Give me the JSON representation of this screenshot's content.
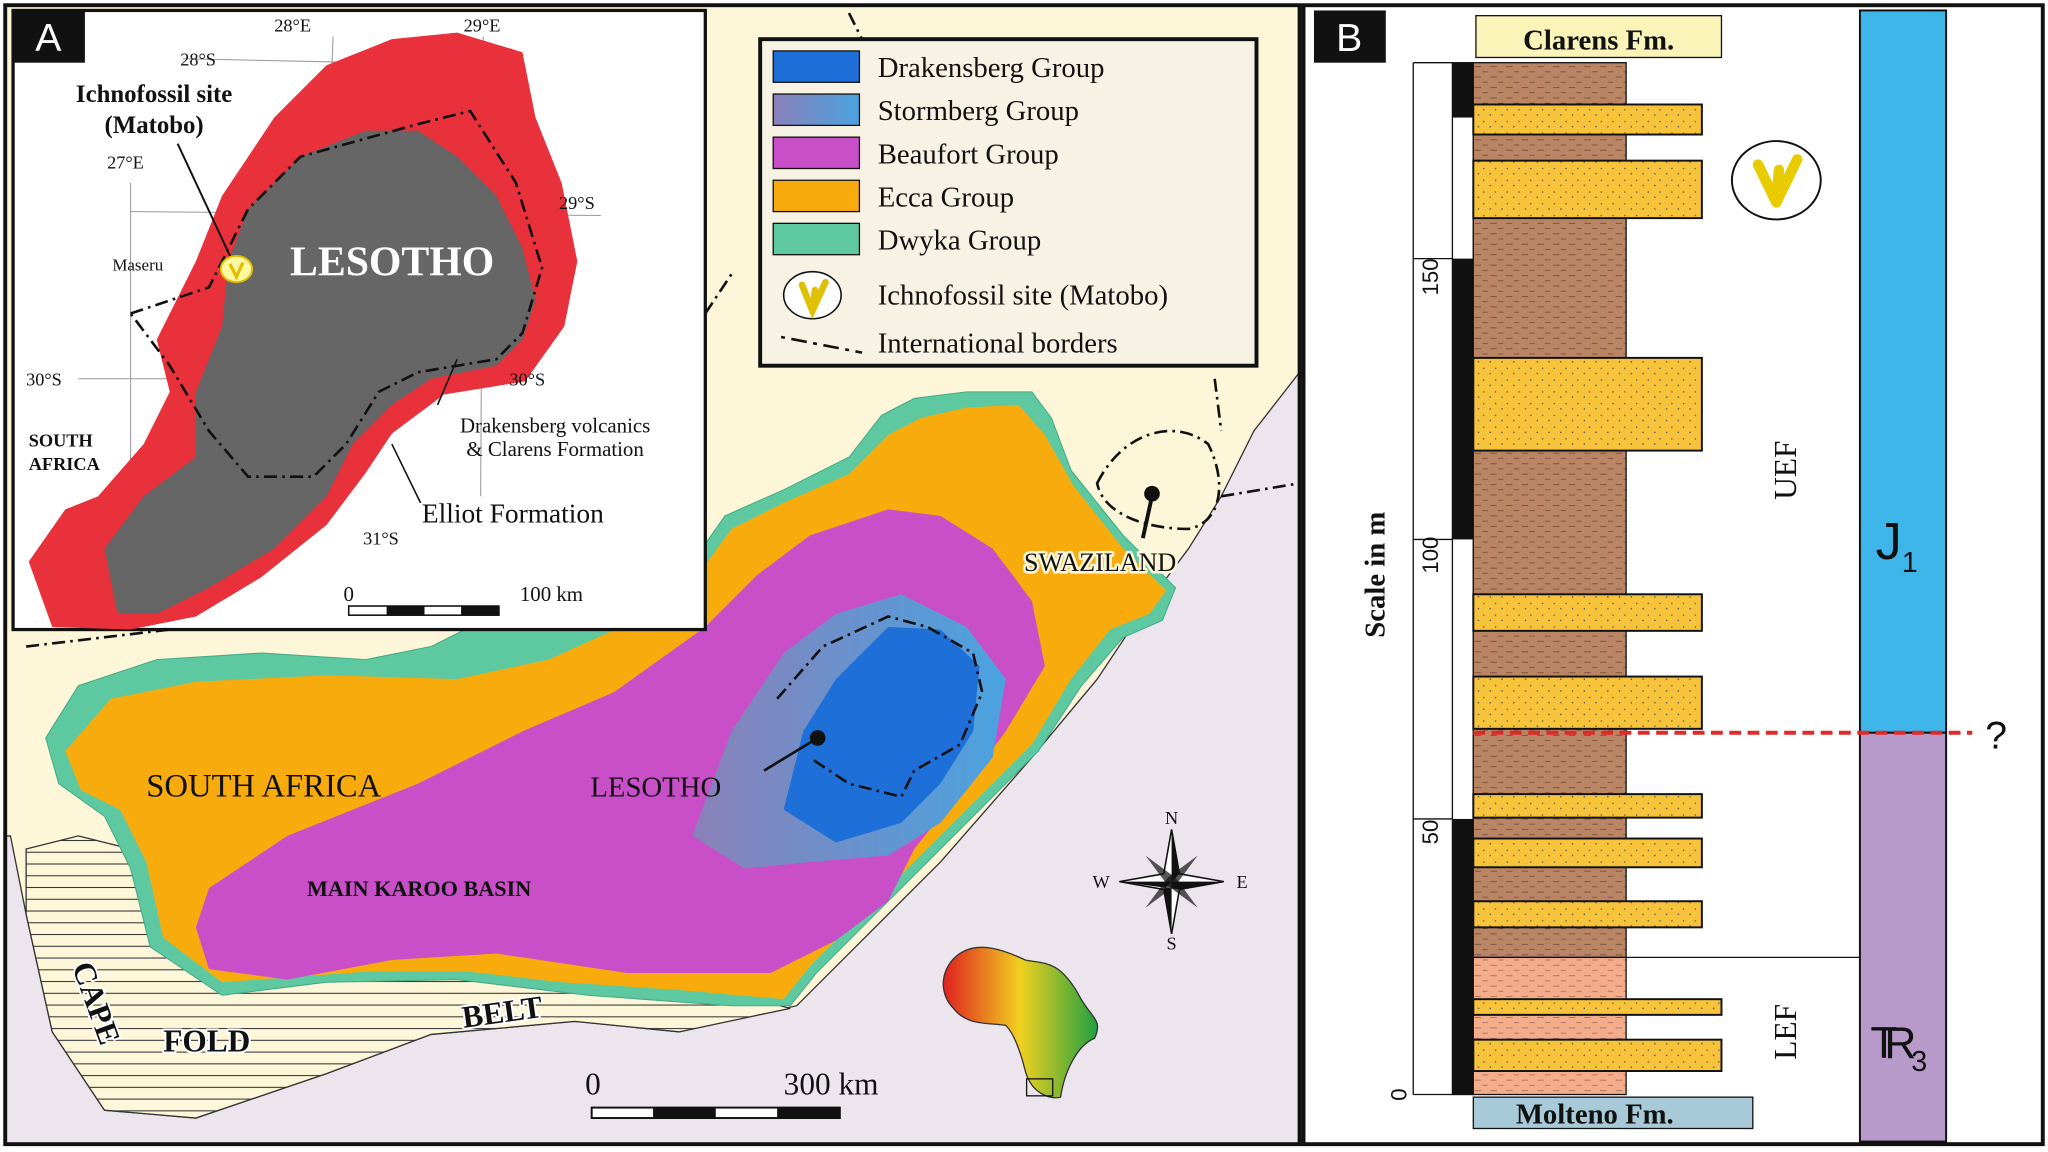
{
  "panel_a": {
    "label": "A",
    "inset": {
      "longitudes": [
        "28°E",
        "29°E",
        "27°E"
      ],
      "latitudes": [
        "28°S",
        "29°S",
        "30°S",
        "30°S",
        "31°S"
      ],
      "site_label": [
        "Ichnofossil site",
        "(Matobo)"
      ],
      "city": "Maseru",
      "country": "LESOTHO",
      "neighbor": [
        "SOUTH",
        "AFRICA"
      ],
      "volcanics_label": [
        "Drakensberg volcanics",
        "& Clarens Formation"
      ],
      "elliot_label": "Elliot Formation",
      "scale": [
        "0",
        "100 km"
      ]
    },
    "legend": {
      "groups": [
        {
          "name": "Drakensberg Group",
          "color": "#1f6fd8"
        },
        {
          "name": "Stormberg Group",
          "color": "#8a80b8"
        },
        {
          "name": "Beaufort Group",
          "color": "#c94fc8"
        },
        {
          "name": "Ecca Group",
          "color": "#f8ab0c"
        },
        {
          "name": "Dwyka Group",
          "color": "#5ec9a0"
        }
      ],
      "site": "Ichnofossil site (Matobo)",
      "borders": "International borders"
    },
    "map": {
      "south_africa": "SOUTH AFRICA",
      "lesotho": "LESOTHO",
      "swaziland": "SWAZILAND",
      "basin": "MAIN KAROO BASIN",
      "cape_fold_belt": [
        "CAPE",
        "FOLD",
        "BELT"
      ],
      "scale": [
        "0",
        "300 km"
      ],
      "compass": {
        "n": "N",
        "e": "E",
        "s": "S",
        "w": "W"
      }
    }
  },
  "panel_b": {
    "label": "B",
    "top_formation": "Clarens Fm.",
    "bottom_formation": "Molteno Fm.",
    "scale_title": "Scale in m",
    "scale_ticks": [
      "0",
      "50",
      "100",
      "150"
    ],
    "upper_unit": "UEF",
    "lower_unit": "LEF",
    "jurassic": {
      "symbol": "J",
      "subscript": "1"
    },
    "triassic": {
      "symbol": "TR",
      "subscript": "3"
    },
    "boundary_note": "?"
  }
}
